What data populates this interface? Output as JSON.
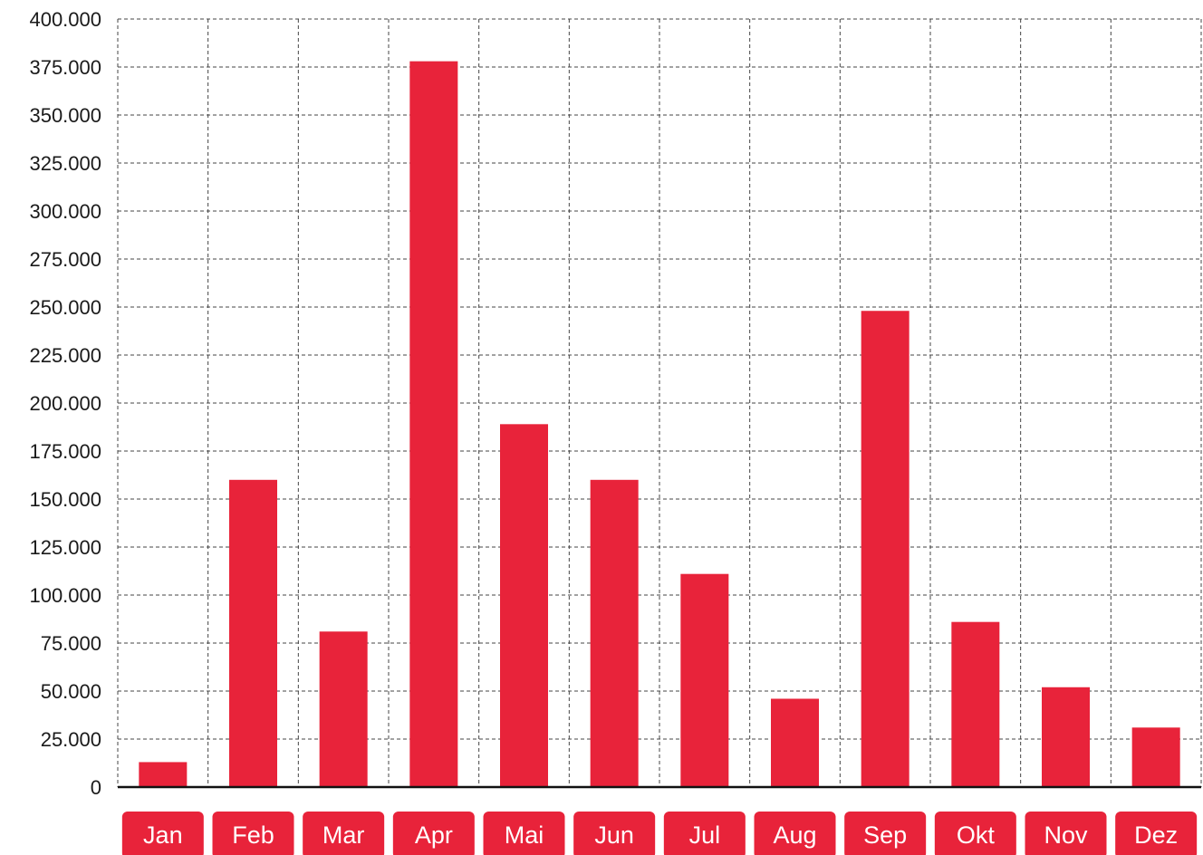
{
  "chart_data": {
    "type": "bar",
    "categories": [
      "Jan",
      "Feb",
      "Mar",
      "Apr",
      "Mai",
      "Jun",
      "Jul",
      "Aug",
      "Sep",
      "Okt",
      "Nov",
      "Dez"
    ],
    "series": [
      {
        "values": [
          13000,
          160000,
          81000,
          378000,
          189000,
          160000,
          111000,
          46000,
          248000,
          86000,
          52000,
          31000
        ]
      }
    ],
    "ylim": [
      0,
      400000
    ],
    "yticks": [
      0,
      25000,
      50000,
      75000,
      100000,
      125000,
      150000,
      175000,
      200000,
      225000,
      250000,
      275000,
      300000,
      325000,
      350000,
      375000,
      400000
    ],
    "ytick_labels": [
      "0",
      "25.000",
      "50.000",
      "75.000",
      "100.000",
      "125.000",
      "150.000",
      "175.000",
      "200.000",
      "225.000",
      "250.000",
      "275.000",
      "300.000",
      "325.000",
      "350.000",
      "375.000",
      "400.000"
    ],
    "grid": true,
    "grid_style": "dashed",
    "legend": "none",
    "colors": {
      "bar": "#e8233a",
      "label_bg": "#e8233a",
      "label_text": "#ffffff",
      "grid": "#444444",
      "axis": "#111111"
    }
  }
}
